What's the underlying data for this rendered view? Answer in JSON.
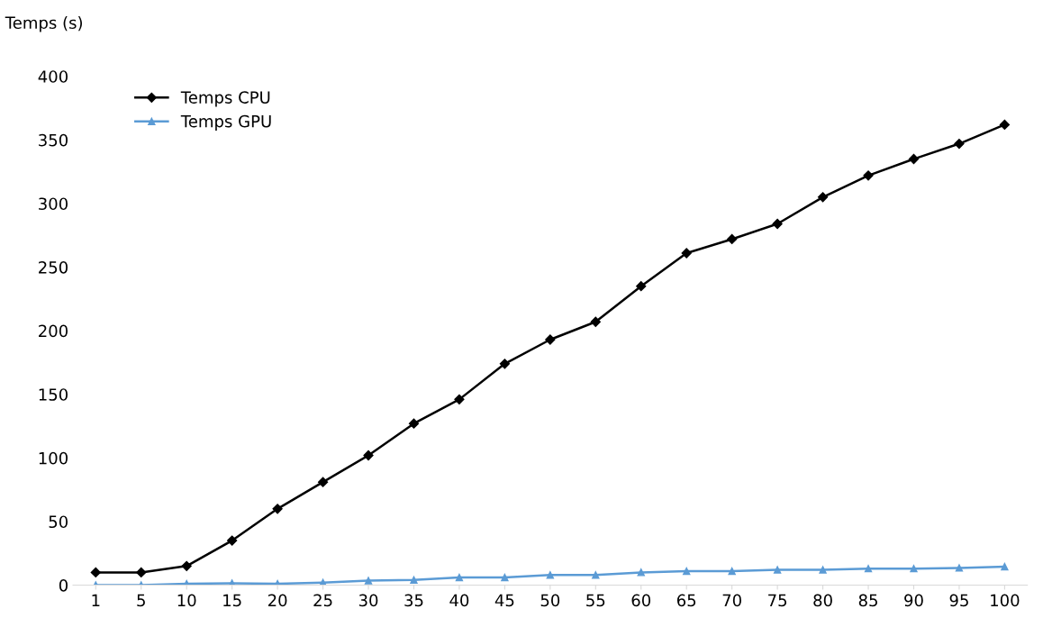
{
  "chart_data": {
    "type": "line",
    "ylabel": "Temps (s)",
    "categories": [
      "1",
      "5",
      "10",
      "15",
      "20",
      "25",
      "30",
      "35",
      "40",
      "45",
      "50",
      "55",
      "60",
      "65",
      "70",
      "75",
      "80",
      "85",
      "90",
      "95",
      "100"
    ],
    "series": [
      {
        "name": "Temps CPU",
        "color": "#000000",
        "marker": "diamond",
        "values": [
          10,
          10,
          15,
          35,
          60,
          81,
          102,
          127,
          146,
          174,
          193,
          207,
          235,
          261,
          272,
          284,
          305,
          322,
          335,
          347,
          362
        ]
      },
      {
        "name": "Temps GPU",
        "color": "#5b9bd5",
        "marker": "triangle",
        "values": [
          0,
          0,
          1,
          1.5,
          1,
          2,
          3.5,
          4,
          6,
          6,
          8,
          8,
          10,
          11,
          11,
          12,
          12,
          13,
          13,
          13.5,
          14.5
        ]
      }
    ],
    "ylim": [
      0,
      400
    ],
    "yticks": [
      0,
      50,
      100,
      150,
      200,
      250,
      300,
      350,
      400
    ],
    "grid": false,
    "legend": "top left",
    "line_style": "solid"
  }
}
